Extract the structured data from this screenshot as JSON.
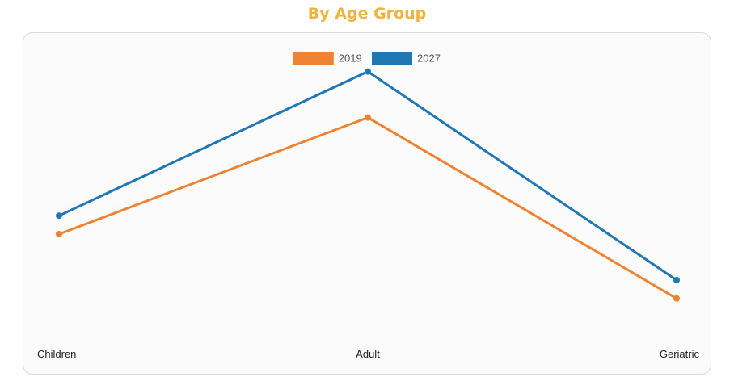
{
  "page": {
    "title": "By Age Group"
  },
  "chart_data": {
    "type": "line",
    "categories": [
      "Children",
      "Adult",
      "Geriatric"
    ],
    "series": [
      {
        "name": "2019",
        "color": "#f08332",
        "values": [
          40,
          78,
          19
        ]
      },
      {
        "name": "2027",
        "color": "#1f77b4",
        "values": [
          46,
          93,
          25
        ]
      }
    ],
    "ylim": [
      0,
      100
    ],
    "grid": false,
    "legend": "top-center",
    "xlabel": "",
    "ylabel": ""
  }
}
